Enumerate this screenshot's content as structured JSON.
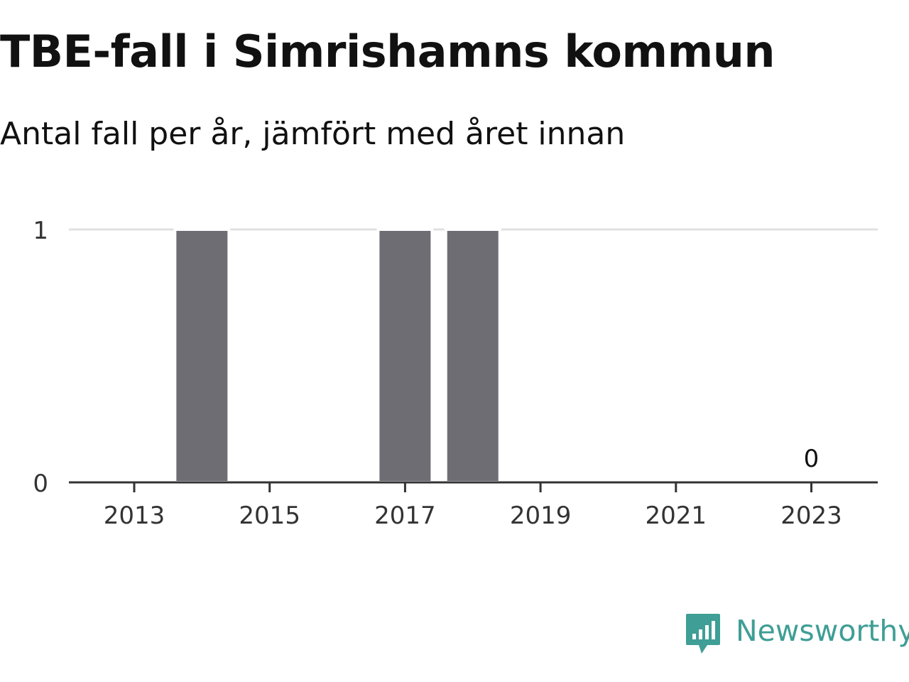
{
  "header": {
    "title": "TBE-fall i Simrishamns kommun",
    "subtitle": "Antal fall per år, jämfört med året innan"
  },
  "brand": {
    "name": "Newsworthy",
    "icon": "newsworthy-logo-icon",
    "color": "#3f9e95"
  },
  "chart_data": {
    "type": "bar",
    "title": "TBE-fall i Simrishamns kommun",
    "subtitle": "Antal fall per år, jämfört med året innan",
    "xlabel": "",
    "ylabel": "",
    "categories": [
      "2013",
      "2014",
      "2015",
      "2016",
      "2017",
      "2018",
      "2019",
      "2020",
      "2021",
      "2022",
      "2023"
    ],
    "values": [
      0,
      1,
      0,
      0,
      1,
      1,
      0,
      0,
      0,
      0,
      0
    ],
    "ylim": [
      0,
      1
    ],
    "y_ticks": [
      "0",
      "1"
    ],
    "x_tick_labels": [
      "2013",
      "2015",
      "2017",
      "2019",
      "2021",
      "2023"
    ],
    "data_labels": [
      {
        "category": "2023",
        "text": "0"
      }
    ],
    "grid": true,
    "bar_color": "#6e6d73",
    "grid_color": "#e0e0e0",
    "axis_color": "#333333"
  }
}
